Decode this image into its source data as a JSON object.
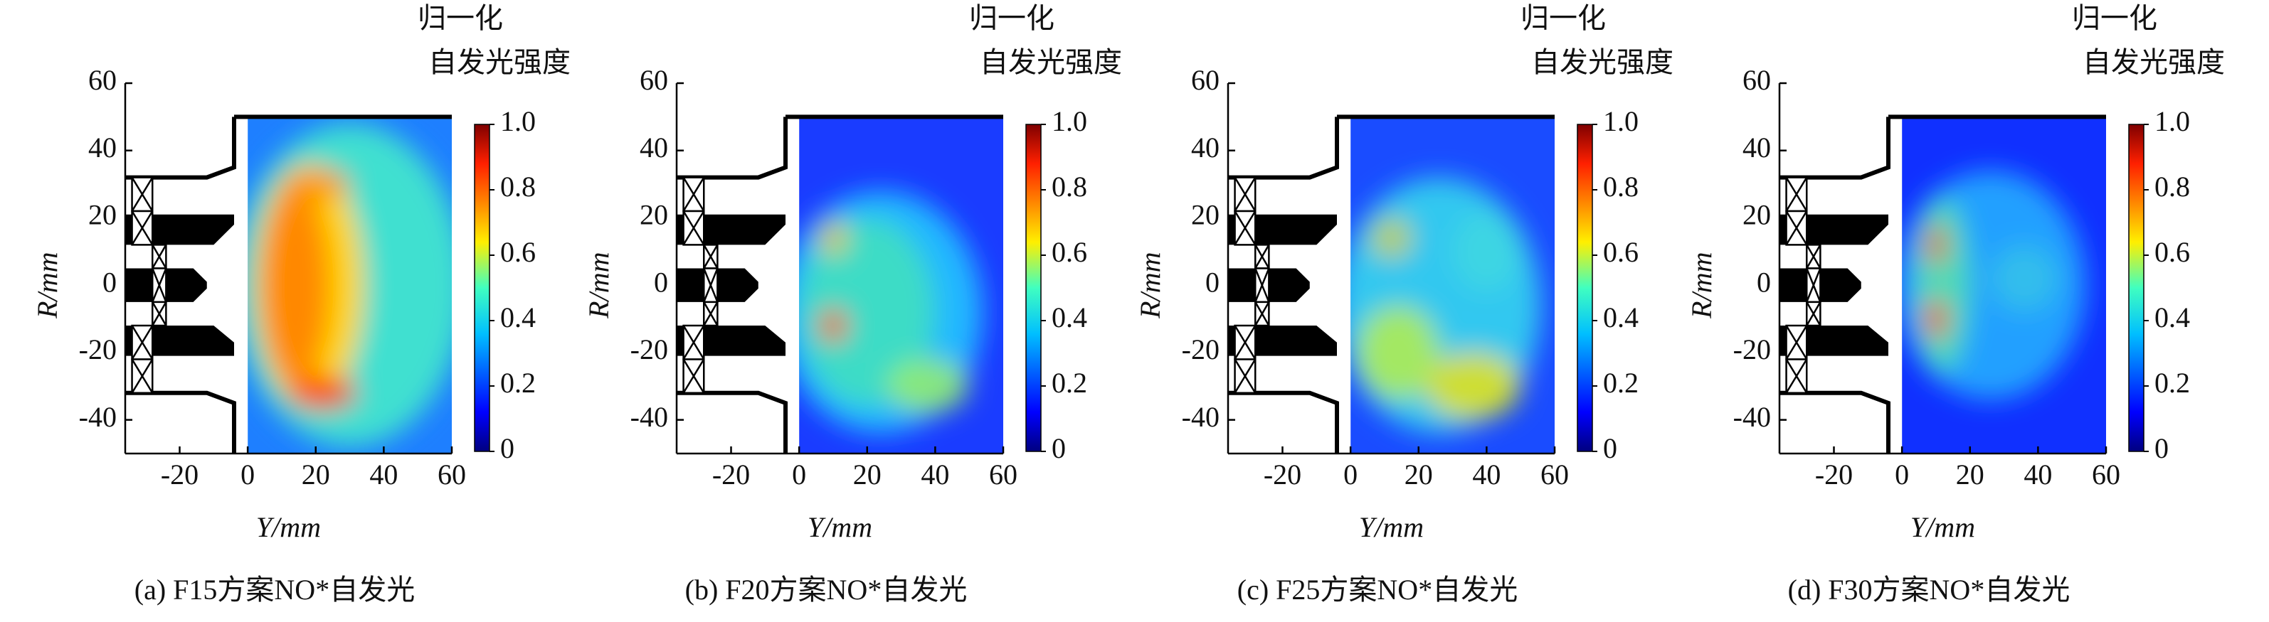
{
  "chart_data": [
    {
      "type": "heatmap",
      "caption": "(a) F15方案NO*自发光",
      "xlabel": "Y/mm",
      "ylabel": "R/mm",
      "colorbar_title": [
        "归一化",
        "自发光强度"
      ],
      "xlim": [
        -36,
        60
      ],
      "ylim": [
        -50,
        60
      ],
      "xticks": [
        -20,
        0,
        20,
        40,
        60
      ],
      "yticks": [
        -40,
        -20,
        0,
        20,
        40,
        60
      ],
      "clim": [
        0,
        1
      ],
      "cticks": [
        0,
        0.2,
        0.4,
        0.6,
        0.8,
        {
          "value": 1,
          "label": "1.0"
        }
      ]
    },
    {
      "type": "heatmap",
      "caption": "(b) F20方案NO*自发光",
      "xlabel": "Y/mm",
      "ylabel": "R/mm",
      "colorbar_title": [
        "归一化",
        "自发光强度"
      ],
      "xlim": [
        -36,
        60
      ],
      "ylim": [
        -50,
        60
      ],
      "xticks": [
        -20,
        0,
        20,
        40,
        60
      ],
      "yticks": [
        -40,
        -20,
        0,
        20,
        40,
        60
      ],
      "clim": [
        0,
        1
      ],
      "cticks": [
        0,
        0.2,
        0.4,
        0.6,
        0.8,
        {
          "value": 1,
          "label": "1.0"
        }
      ]
    },
    {
      "type": "heatmap",
      "caption": "(c) F25方案NO*自发光",
      "xlabel": "Y/mm",
      "ylabel": "R/mm",
      "colorbar_title": [
        "归一化",
        "自发光强度"
      ],
      "xlim": [
        -36,
        60
      ],
      "ylim": [
        -50,
        60
      ],
      "xticks": [
        -20,
        0,
        20,
        40,
        60
      ],
      "yticks": [
        -40,
        -20,
        0,
        20,
        40,
        60
      ],
      "clim": [
        0,
        1
      ],
      "cticks": [
        0,
        0.2,
        0.4,
        0.6,
        0.8,
        {
          "value": 1,
          "label": "1.0"
        }
      ]
    },
    {
      "type": "heatmap",
      "caption": "(d) F30方案NO*自发光",
      "xlabel": "Y/mm",
      "ylabel": "R/mm",
      "colorbar_title": [
        "归一化",
        "自发光强度"
      ],
      "xlim": [
        -36,
        60
      ],
      "ylim": [
        -50,
        60
      ],
      "xticks": [
        -20,
        0,
        20,
        40,
        60
      ],
      "yticks": [
        -40,
        -20,
        0,
        20,
        40,
        60
      ],
      "clim": [
        0,
        1
      ],
      "cticks": [
        0,
        0.2,
        0.4,
        0.6,
        0.8,
        {
          "value": 1,
          "label": "1.0"
        }
      ]
    }
  ]
}
